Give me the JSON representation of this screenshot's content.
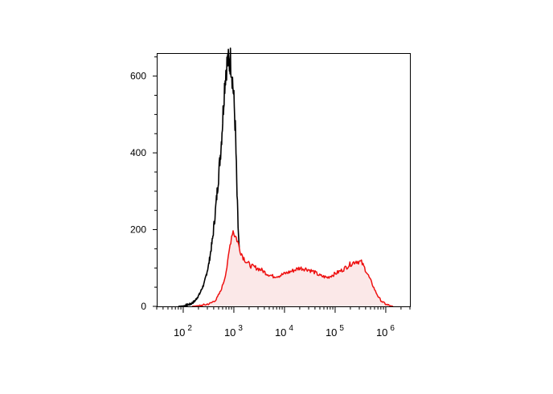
{
  "chart_data": {
    "type": "histogram",
    "x_scale": "log",
    "xlim": [
      30,
      3000000
    ],
    "ylim": [
      0,
      660
    ],
    "x_ticks": [
      {
        "value": 100,
        "base": "10",
        "exp": "2"
      },
      {
        "value": 1000,
        "base": "10",
        "exp": "3"
      },
      {
        "value": 10000,
        "base": "10",
        "exp": "4"
      },
      {
        "value": 100000,
        "base": "10",
        "exp": "5"
      },
      {
        "value": 1000000,
        "base": "10",
        "exp": "6"
      }
    ],
    "y_ticks": [
      {
        "value": 0,
        "label": "0"
      },
      {
        "value": 200,
        "label": "200"
      },
      {
        "value": 400,
        "label": "400"
      },
      {
        "value": 600,
        "label": "600"
      }
    ],
    "series": [
      {
        "color": "#000000",
        "fill": "none",
        "points": [
          [
            80,
            0
          ],
          [
            100,
            1
          ],
          [
            140,
            6
          ],
          [
            170,
            14
          ],
          [
            210,
            32
          ],
          [
            260,
            60
          ],
          [
            320,
            110
          ],
          [
            380,
            175
          ],
          [
            430,
            245
          ],
          [
            470,
            300
          ],
          [
            510,
            355
          ],
          [
            560,
            420
          ],
          [
            610,
            500
          ],
          [
            650,
            570
          ],
          [
            700,
            620
          ],
          [
            760,
            640
          ],
          [
            820,
            630
          ],
          [
            860,
            645
          ],
          [
            930,
            600
          ],
          [
            1000,
            540
          ],
          [
            1080,
            450
          ],
          [
            1150,
            300
          ],
          [
            1220,
            200
          ],
          [
            1300,
            125
          ],
          [
            1400,
            72
          ],
          [
            1550,
            40
          ],
          [
            1750,
            18
          ],
          [
            2000,
            8
          ],
          [
            2500,
            3
          ],
          [
            3200,
            2
          ],
          [
            4000,
            1
          ],
          [
            5000,
            0
          ]
        ]
      },
      {
        "color": "#ee1111",
        "fill": "#fbe8e8",
        "points": [
          [
            150,
            0
          ],
          [
            250,
            3
          ],
          [
            350,
            8
          ],
          [
            450,
            18
          ],
          [
            550,
            40
          ],
          [
            650,
            70
          ],
          [
            750,
            110
          ],
          [
            850,
            165
          ],
          [
            950,
            200
          ],
          [
            1050,
            185
          ],
          [
            1150,
            175
          ],
          [
            1300,
            150
          ],
          [
            1500,
            130
          ],
          [
            1800,
            115
          ],
          [
            2200,
            105
          ],
          [
            2800,
            100
          ],
          [
            3500,
            95
          ],
          [
            4500,
            85
          ],
          [
            6000,
            78
          ],
          [
            8000,
            80
          ],
          [
            10000,
            85
          ],
          [
            14000,
            92
          ],
          [
            20000,
            100
          ],
          [
            28000,
            97
          ],
          [
            38000,
            90
          ],
          [
            50000,
            80
          ],
          [
            70000,
            75
          ],
          [
            100000,
            85
          ],
          [
            140000,
            95
          ],
          [
            200000,
            110
          ],
          [
            260000,
            118
          ],
          [
            330000,
            115
          ],
          [
            400000,
            95
          ],
          [
            500000,
            68
          ],
          [
            620000,
            40
          ],
          [
            750000,
            20
          ],
          [
            900000,
            9
          ],
          [
            1100000,
            3
          ],
          [
            1400000,
            0
          ]
        ]
      }
    ]
  }
}
